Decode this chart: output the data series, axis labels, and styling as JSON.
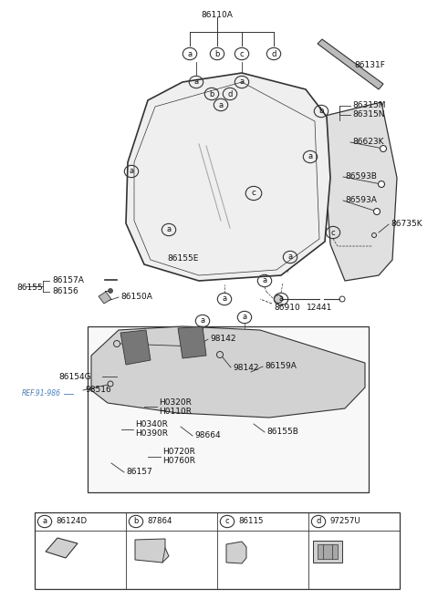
{
  "bg_color": "#ffffff",
  "line_color": "#333333",
  "text_color": "#111111",
  "ref_color": "#4a7bb5",
  "legend": {
    "a": "86124D",
    "b": "87864",
    "c": "86115",
    "d": "97257U"
  }
}
